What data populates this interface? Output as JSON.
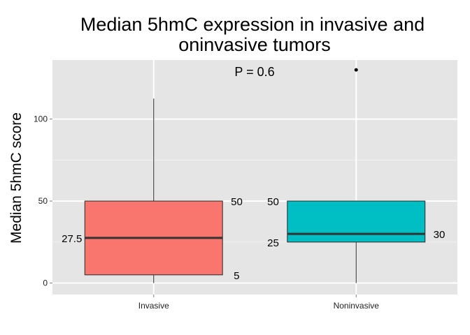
{
  "chart_data": {
    "type": "box",
    "title_lines": [
      "Median 5hmC expression in invasive and",
      "oninvasive tumors"
    ],
    "xlabel": "",
    "ylabel": "Median 5hmC score",
    "ylim": [
      -7,
      136
    ],
    "yticks": [
      0,
      50,
      100
    ],
    "grid": true,
    "categories": [
      "Invasive",
      "Noninvasive"
    ],
    "boxes": [
      {
        "category": "Invasive",
        "whisker_low": 0,
        "q1": 5,
        "median": 27.5,
        "q3": 50,
        "whisker_high": 112.5,
        "outliers": [],
        "fill": "#F8766D",
        "labels": {
          "q3": "50",
          "median": "27.5",
          "q1": "5"
        }
      },
      {
        "category": "Noninvasive",
        "whisker_low": 0,
        "q1": 25,
        "median": 30,
        "q3": 50,
        "whisker_high": 50,
        "outliers": [
          130
        ],
        "fill": "#00BFC4",
        "labels": {
          "q3": "50",
          "q1": "25",
          "median": "30"
        }
      }
    ],
    "annotation": "P = 0.6"
  }
}
